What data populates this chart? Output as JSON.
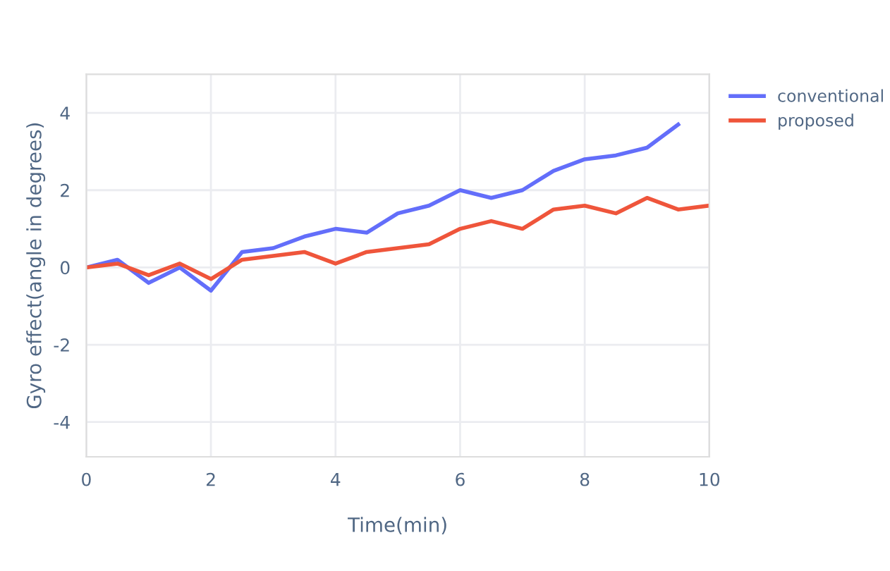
{
  "chart_data": {
    "type": "line",
    "xlabel": "Time(min)",
    "ylabel": "Gyro effect(angle in degrees)",
    "x": [
      0,
      0.5,
      1,
      1.5,
      2,
      2.5,
      3,
      3.5,
      4,
      4.5,
      5,
      5.5,
      6,
      6.5,
      7,
      7.5,
      8,
      8.5,
      9,
      9.5,
      10
    ],
    "series": [
      {
        "name": "conventional",
        "color": "#636efa",
        "x": [
          0,
          0.5,
          1,
          1.5,
          2,
          2.5,
          3,
          3.5,
          4,
          4.5,
          5,
          5.5,
          6,
          6.5,
          7,
          7.5,
          8,
          8.5,
          9,
          9.5
        ],
        "values": [
          0,
          0.2,
          -0.4,
          0,
          -0.6,
          0.4,
          0.5,
          0.8,
          1.0,
          0.9,
          1.4,
          1.6,
          2.0,
          1.8,
          2.0,
          2.5,
          2.8,
          2.9,
          3.1,
          3.7
        ]
      },
      {
        "name": "proposed",
        "color": "#ef553b",
        "values": [
          0,
          0.1,
          -0.2,
          0.1,
          -0.3,
          0.2,
          0.3,
          0.4,
          0.1,
          0.4,
          0.5,
          0.6,
          1.0,
          1.2,
          1.0,
          1.5,
          1.6,
          1.4,
          1.8,
          1.5,
          1.6
        ]
      }
    ],
    "xlim": [
      0,
      10
    ],
    "xticks": [
      0,
      2,
      4,
      6,
      8,
      10
    ],
    "ylim": [
      -4.9,
      5
    ],
    "yticks": [
      -4,
      -2,
      0,
      2,
      4
    ],
    "grid": true,
    "legend": "top right",
    "marker": "none",
    "line_style": "solid"
  }
}
